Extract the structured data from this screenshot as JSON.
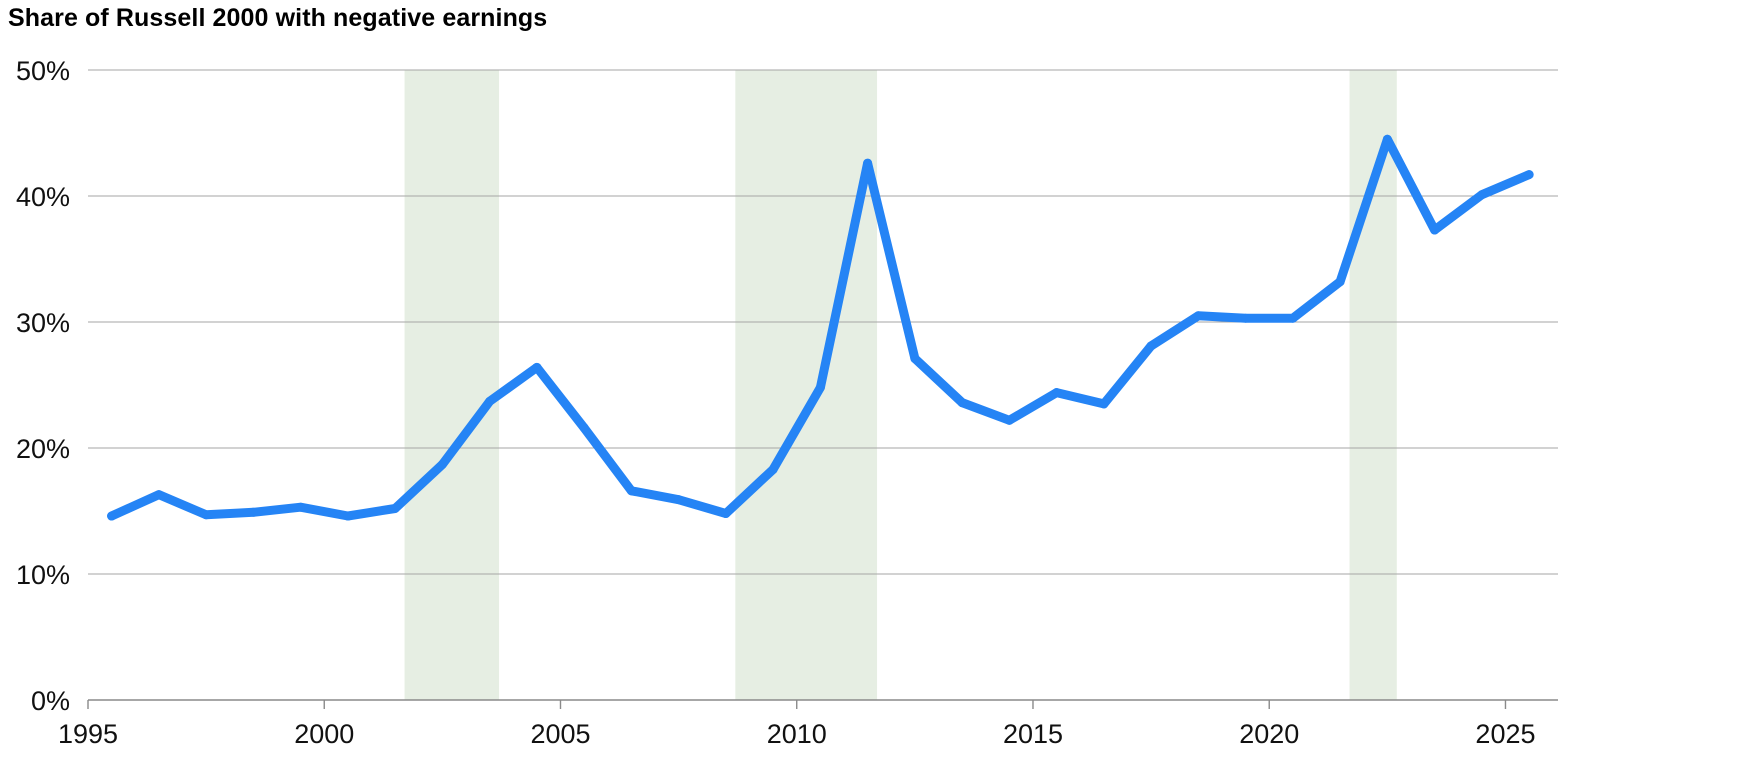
{
  "chart_data": {
    "type": "line",
    "title": "Share of Russell 2000 with negative earnings",
    "xlabel": "",
    "ylabel": "",
    "xlim": [
      1995,
      2025.9
    ],
    "ylim": [
      0,
      50
    ],
    "x_ticks": [
      1995,
      2000,
      2005,
      2010,
      2015,
      2020,
      2025
    ],
    "x_tick_labels": [
      "1995",
      "2000",
      "2005",
      "2010",
      "2015",
      "2020",
      "2025"
    ],
    "y_ticks": [
      0,
      10,
      20,
      30,
      40,
      50
    ],
    "y_tick_labels": [
      "0%",
      "10%",
      "20%",
      "30%",
      "40%",
      "50%"
    ],
    "grid": true,
    "legend": "none",
    "line_color": "#2584F5",
    "shade_color": "#E6EEE3",
    "shaded_periods": [
      {
        "start": 2001.7,
        "end": 2003.7
      },
      {
        "start": 2008.7,
        "end": 2011.7
      },
      {
        "start": 2021.7,
        "end": 2022.7
      }
    ],
    "series": [
      {
        "x": [
          1995.5,
          1996.5,
          1997.5,
          1998.5,
          1999.5,
          2000.5,
          2001.5,
          2002.5,
          2003.5,
          2004.5,
          2005.5,
          2006.5,
          2007.5,
          2008.5,
          2009.5,
          2010.5,
          2011.5,
          2012.5,
          2013.5,
          2014.5,
          2015.5,
          2016.5,
          2017.5,
          2018.5,
          2019.5,
          2020.5,
          2021.5,
          2022.5,
          2023.5,
          2024.5,
          2025.5
        ],
        "values": [
          14.6,
          16.3,
          14.7,
          14.9,
          15.3,
          14.6,
          15.2,
          18.7,
          23.7,
          26.4,
          21.6,
          16.6,
          15.9,
          14.8,
          18.3,
          24.8,
          42.6,
          27.1,
          23.6,
          22.2,
          24.4,
          23.5,
          28.1,
          30.5,
          30.3,
          30.3,
          33.2,
          44.5,
          37.3,
          40.1,
          41.7
        ]
      }
    ]
  }
}
